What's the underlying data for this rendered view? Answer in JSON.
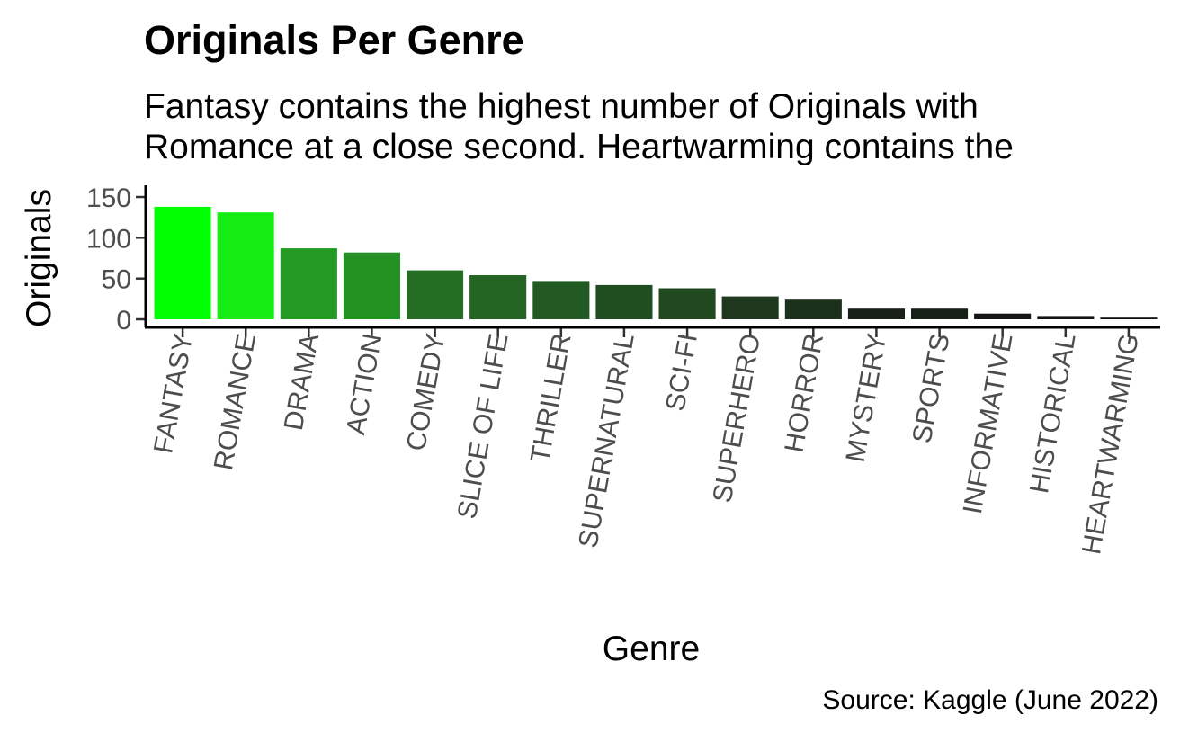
{
  "chart_data": {
    "type": "bar",
    "title": "Originals Per Genre",
    "subtitle_lines": [
      "Fantasy contains the highest number of Originals with",
      "Romance at a close second. Heartwarming contains the"
    ],
    "caption": "Source: Kaggle (June 2022)",
    "xlabel": "Genre",
    "ylabel": "Originals",
    "categories": [
      "FANTASY",
      "ROMANCE",
      "DRAMA",
      "ACTION",
      "COMEDY",
      "SLICE OF LIFE",
      "THRILLER",
      "SUPERNATURAL",
      "SCI-FI",
      "SUPERHERO",
      "HORROR",
      "MYSTERY",
      "SPORTS",
      "INFORMATIVE",
      "HISTORICAL",
      "HEARTWARMING"
    ],
    "values": [
      138,
      131,
      87,
      82,
      60,
      54,
      47,
      42,
      38,
      28,
      24,
      13,
      13,
      7,
      4,
      2
    ],
    "colors": [
      "#00ff00",
      "#14ec14",
      "#239a23",
      "#239223",
      "#246e24",
      "#246524",
      "#235a23",
      "#214e21",
      "#204920",
      "#1d381d",
      "#1b311b",
      "#172117",
      "#172117",
      "#141614",
      "#131313",
      "#111111"
    ],
    "ylim": [
      0,
      155
    ],
    "yticks": [
      0,
      50,
      100,
      150
    ],
    "grid": false,
    "legend": "none"
  }
}
